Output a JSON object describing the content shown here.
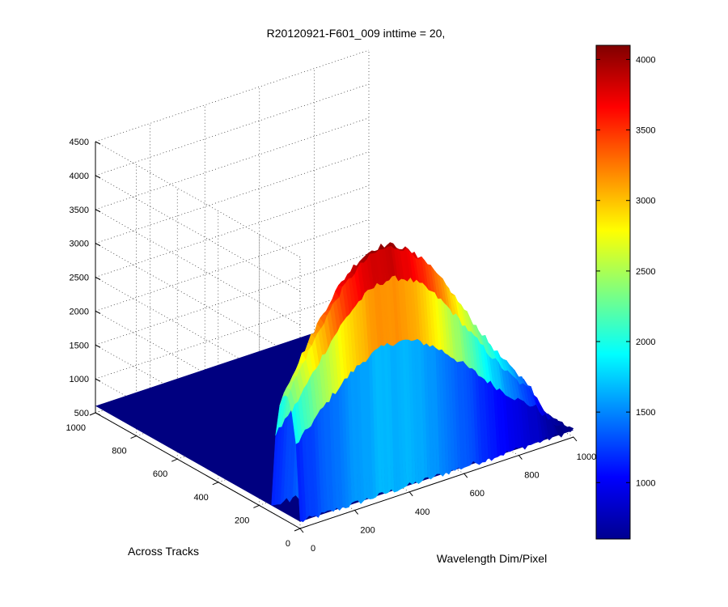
{
  "chart_data": {
    "type": "surface",
    "title": "R20120921-F601_009 inttime = 20,",
    "xlabel": "Wavelength Dim/Pixel",
    "ylabel": "Across Tracks",
    "zlabel": "",
    "x_ticks": [
      "0",
      "200",
      "400",
      "600",
      "800",
      "1000"
    ],
    "y_ticks": [
      "0",
      "200",
      "400",
      "600",
      "800",
      "1000"
    ],
    "z_ticks": [
      "500",
      "1000",
      "1500",
      "2000",
      "2500",
      "3000",
      "3500",
      "4000",
      "4500"
    ],
    "xlim": [
      0,
      1000
    ],
    "ylim": [
      0,
      1000
    ],
    "zlim": [
      500,
      4500
    ],
    "colormap": "jet",
    "grid": true,
    "colorbar": {
      "clim": [
        600,
        4100
      ],
      "ticks": [
        "1000",
        "1500",
        "2000",
        "2500",
        "3000",
        "3500",
        "4000"
      ]
    },
    "baseline_value": 600,
    "signal_region": {
      "y_range": [
        0,
        140
      ],
      "x_range": [
        0,
        1000
      ],
      "peak_value": 4100,
      "peak_x": 350
    }
  }
}
